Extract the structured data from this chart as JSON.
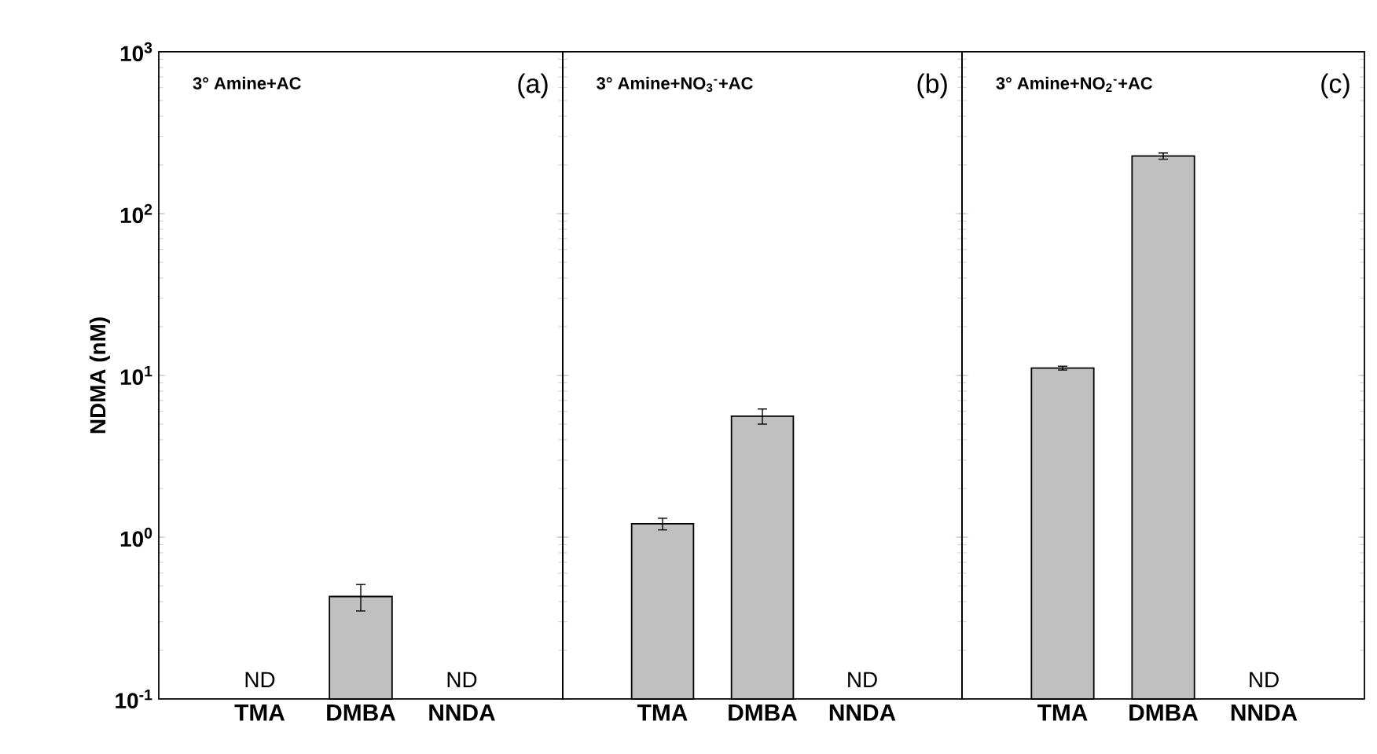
{
  "chart_data": [
    {
      "type": "bar",
      "title": "3° Amine+AC",
      "ylabel": "NDMA (nM)",
      "categories": [
        "TMA",
        "DMBA",
        "NNDA"
      ],
      "values": [
        null,
        0.43,
        null
      ],
      "errors": [
        null,
        0.08,
        null
      ],
      "color": "#c0c0c0",
      "log": "y",
      "ylim": [
        0.1,
        1000
      ],
      "yticks": [
        {
          "value": 0.1,
          "label": "10$^{-1}$"
        },
        {
          "value": 1,
          "label": "10$^{0}$"
        },
        {
          "value": 10,
          "label": "10$^{1}$"
        },
        {
          "value": 100,
          "label": "10$^{2}$"
        },
        {
          "value": 1000,
          "label": "10$^{3}$"
        }
      ],
      "annotations": [
        "(a)",
        "ND",
        "ND"
      ]
    },
    {
      "type": "bar",
      "title": "3° Amine+NO$_{3}$$^{-}$+AC",
      "categories": [
        "TMA",
        "DMBA",
        "NNDA"
      ],
      "values": [
        1.21,
        5.6,
        null
      ],
      "errors": [
        0.1,
        0.6,
        null
      ],
      "color": "#c0c0c0",
      "log": "y",
      "ylim": [
        0.1,
        1000
      ],
      "yticks": [
        {
          "value": 0.1,
          "label": null
        },
        {
          "value": 1,
          "label": null
        },
        {
          "value": 10,
          "label": null
        },
        {
          "value": 100,
          "label": null
        },
        {
          "value": 1000,
          "label": null
        }
      ],
      "tick_labels": "x",
      "annotations": [
        "(b)",
        "ND"
      ]
    },
    {
      "type": "bar",
      "title": "3° Amine+NO$_{2}$$^{-}$+AC",
      "categories": [
        "TMA",
        "DMBA",
        "NNDA"
      ],
      "values": [
        11.1,
        227,
        null
      ],
      "errors": [
        0.3,
        10,
        null
      ],
      "color": "#c0c0c0",
      "log": "y",
      "ylim": [
        0.1,
        1000
      ],
      "yticks": [
        {
          "value": 0.1,
          "label": null
        },
        {
          "value": 1,
          "label": null
        },
        {
          "value": 10,
          "label": null
        },
        {
          "value": 100,
          "label": null
        },
        {
          "value": 1000,
          "label": null
        }
      ],
      "tick_labels": "x",
      "annotations": [
        "(c)",
        "ND"
      ]
    }
  ]
}
